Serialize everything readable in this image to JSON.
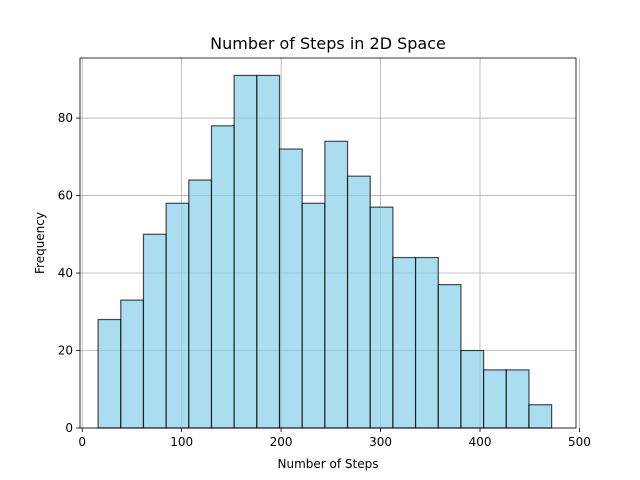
{
  "chart_data": {
    "type": "bar",
    "title": "Number of Steps in 2D Space",
    "xlabel": "Number of Steps",
    "ylabel": "Frequency",
    "xlim": [
      -2.2,
      496.5
    ],
    "ylim": [
      0,
      95.5
    ],
    "xticks": [
      0,
      100,
      200,
      300,
      400,
      500
    ],
    "yticks": [
      0,
      20,
      40,
      60,
      80
    ],
    "bin_edges": [
      16,
      38.8,
      61.6,
      84.4,
      107.2,
      130,
      152.8,
      175.6,
      198.4,
      221.2,
      244,
      266.8,
      289.6,
      312.4,
      335.2,
      358,
      380.8,
      403.6,
      426.4,
      449.2,
      472
    ],
    "values": [
      28,
      33,
      50,
      58,
      64,
      78,
      91,
      91,
      72,
      58,
      74,
      65,
      57,
      44,
      44,
      37,
      20,
      15,
      15,
      6
    ],
    "grid": true,
    "colors": {
      "bar_fill": "#87ceeb",
      "bar_edge": "#000000",
      "grid": "#b0b0b0"
    }
  }
}
